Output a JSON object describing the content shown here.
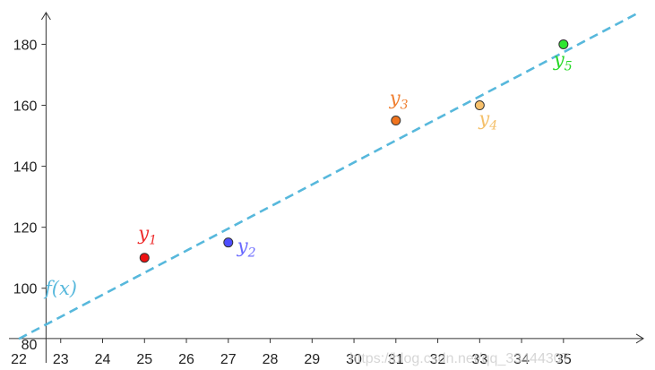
{
  "chart_data": {
    "type": "scatter",
    "title": "",
    "xlabel": "",
    "ylabel": "",
    "xlim": [
      22,
      36.8
    ],
    "ylim": [
      82,
      191
    ],
    "x_ticks": [
      22,
      23,
      24,
      25,
      26,
      27,
      28,
      29,
      30,
      31,
      32,
      33,
      34,
      35
    ],
    "y_ticks": [
      80,
      100,
      120,
      140,
      160,
      180
    ],
    "grid": false,
    "points": [
      {
        "label": "y",
        "sub": "1",
        "x": 25,
        "y": 110,
        "color": "#ee1111",
        "label_color": "#ee2b2b"
      },
      {
        "label": "y",
        "sub": "2",
        "x": 27,
        "y": 115,
        "color": "#4d4dff",
        "label_color": "#6a6aff"
      },
      {
        "label": "y",
        "sub": "3",
        "x": 31,
        "y": 155,
        "color": "#f0741e",
        "label_color": "#f07f30"
      },
      {
        "label": "y",
        "sub": "4",
        "x": 33,
        "y": 160,
        "color": "#f7c06b",
        "label_color": "#f4c06a"
      },
      {
        "label": "y",
        "sub": "5",
        "x": 35,
        "y": 180,
        "color": "#2ee62e",
        "label_color": "#27d827"
      }
    ],
    "fit_line": {
      "label": "f(x)",
      "color": "#57b8dc",
      "style": "dashed",
      "x": [
        22,
        36.8
      ],
      "y": [
        83.4,
        190.4
      ]
    },
    "watermark": "https://blog.csdn.net/qq_33444307"
  }
}
